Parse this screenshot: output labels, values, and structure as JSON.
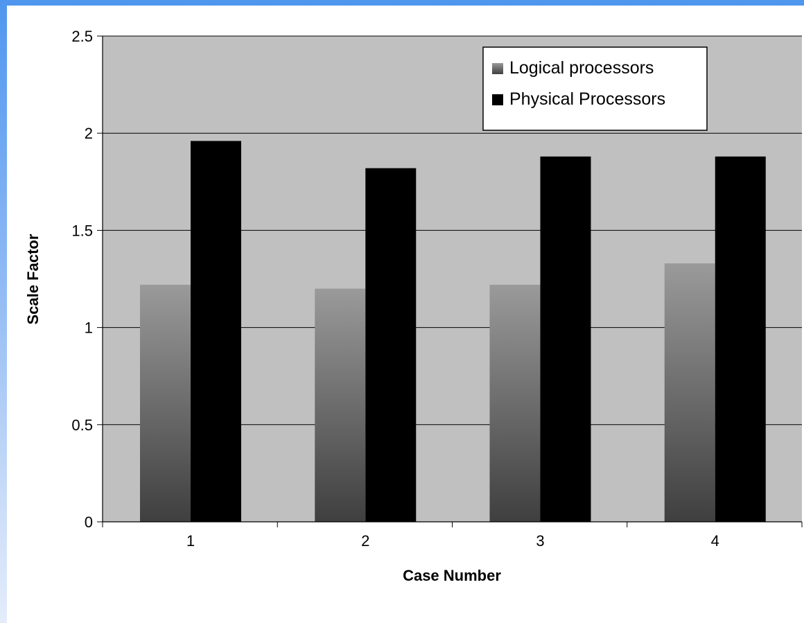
{
  "chart_data": {
    "type": "bar",
    "title": "",
    "xlabel": "Case Number",
    "ylabel": "Scale Factor",
    "categories": [
      "1",
      "2",
      "3",
      "4"
    ],
    "ylim": [
      0,
      2.5
    ],
    "yticks": [
      "0",
      "0.5",
      "1",
      "1.5",
      "2",
      "2.5"
    ],
    "grid": true,
    "legend_position": "top-right",
    "series": [
      {
        "name": "Logical processors",
        "values": [
          1.22,
          1.2,
          1.22,
          1.33
        ],
        "color": "#8c8c8c"
      },
      {
        "name": "Physical Processors",
        "values": [
          1.96,
          1.82,
          1.88,
          1.88
        ],
        "color": "#000000"
      }
    ],
    "plot_background": "#c0c0c0"
  }
}
